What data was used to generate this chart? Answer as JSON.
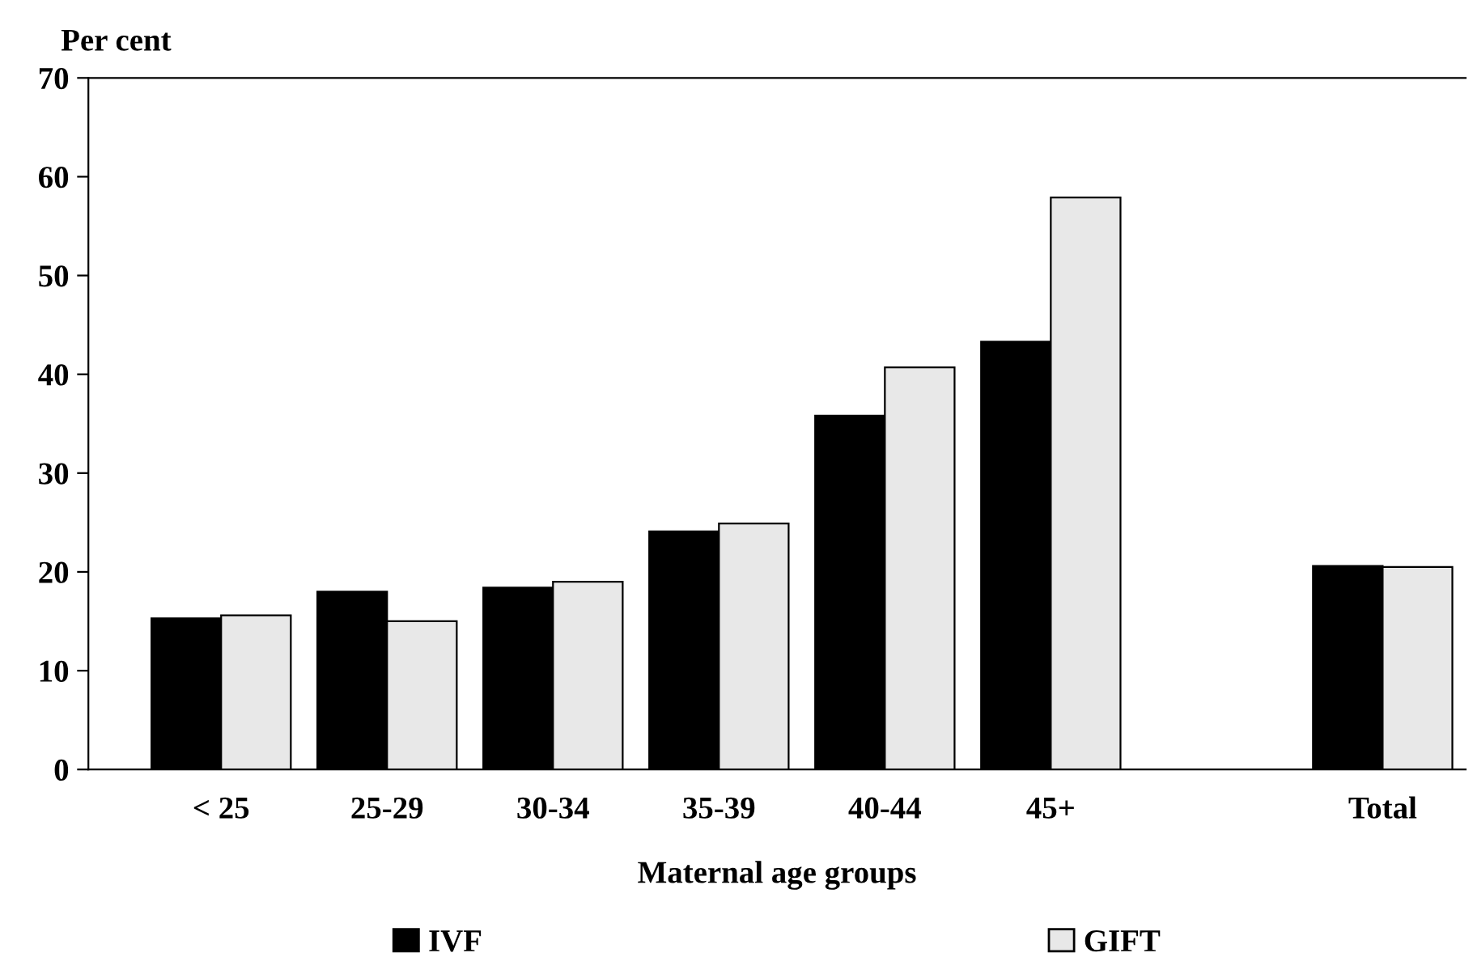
{
  "chart_data": {
    "type": "bar",
    "ylabel": "Per cent",
    "xlabel": "Maternal age groups",
    "categories": [
      "< 25",
      "25-29",
      "30-34",
      "35-39",
      "40-44",
      "45+",
      null,
      "Total"
    ],
    "series": [
      {
        "name": "IVF",
        "color": "#000000",
        "values": [
          15.3,
          18.0,
          18.4,
          24.1,
          35.8,
          43.3,
          null,
          20.6
        ]
      },
      {
        "name": "GIFT",
        "color": "#e8e8e8",
        "values": [
          15.6,
          15.0,
          19.0,
          24.9,
          40.7,
          57.9,
          null,
          20.5
        ]
      }
    ],
    "ylim": [
      0,
      70
    ],
    "yticks": [
      0,
      10,
      20,
      30,
      40,
      50,
      60,
      70
    ],
    "grid": false,
    "legend": "bottom"
  }
}
